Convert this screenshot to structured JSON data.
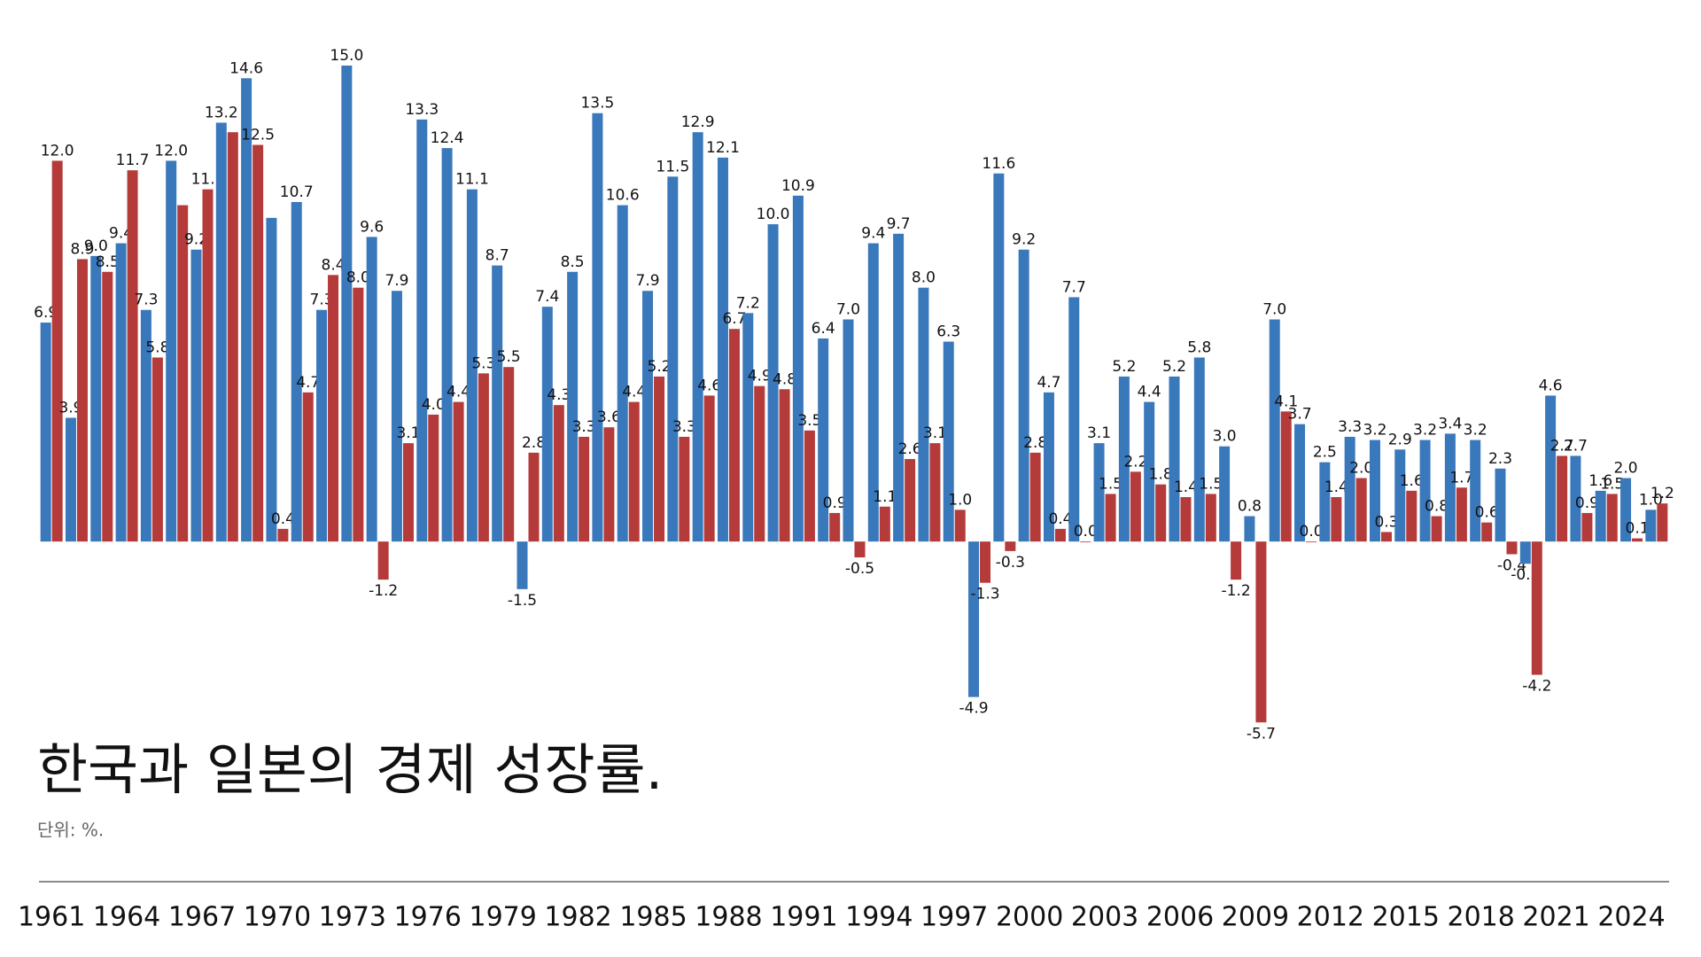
{
  "chart_data": {
    "type": "bar",
    "title": "한국과 일본의 경제 성장률.",
    "subtitle": "단위: %.",
    "categories": [
      "1961",
      null,
      null,
      "1964",
      null,
      null,
      "1967",
      null,
      null,
      "1970",
      null,
      null,
      "1973",
      null,
      null,
      "1976",
      null,
      null,
      "1979",
      null,
      null,
      "1982",
      null,
      null,
      "1985",
      null,
      null,
      "1988",
      null,
      null,
      "1991",
      null,
      null,
      "1994",
      null,
      null,
      "1997",
      null,
      null,
      "2000",
      null,
      null,
      "2003",
      null,
      null,
      "2006",
      null,
      null,
      "2009",
      null,
      null,
      "2012",
      null,
      null,
      "2015",
      null,
      null,
      "2018",
      null,
      null,
      "2021",
      null,
      null,
      "2024",
      null
    ],
    "series": [
      {
        "color": "#3a78bc",
        "values": [
          6.9,
          3.9,
          9.0,
          9.4,
          7.3,
          12.0,
          9.2,
          13.2,
          14.6,
          10.2,
          10.7,
          7.3,
          15.0,
          9.6,
          7.9,
          13.3,
          12.4,
          11.1,
          8.7,
          -1.5,
          7.4,
          8.5,
          13.5,
          10.6,
          7.9,
          11.5,
          12.9,
          12.1,
          7.2,
          10.0,
          10.9,
          6.4,
          7.0,
          9.4,
          9.7,
          8.0,
          6.3,
          -4.9,
          11.6,
          9.2,
          4.7,
          7.7,
          3.1,
          5.2,
          4.4,
          5.2,
          5.8,
          3.0,
          0.8,
          7.0,
          3.7,
          2.5,
          3.3,
          3.2,
          2.9,
          3.2,
          3.4,
          3.2,
          2.3,
          -0.7,
          4.6,
          2.7,
          1.6,
          2.0,
          1.0
        ],
        "value_labels": [
          "6.9",
          "3.9",
          "9.0",
          "9.4",
          "7.3",
          "12.0",
          "9.2",
          "13.2",
          "14.6",
          null,
          "10.7",
          "7.3",
          "15.0",
          "9.6",
          "7.9",
          "13.3",
          "12.4",
          "11.1",
          "8.7",
          "-1.5",
          "7.4",
          "8.5",
          "13.5",
          "10.6",
          "7.9",
          "11.5",
          "12.9",
          "12.1",
          "7.2",
          "10.0",
          "10.9",
          "6.4",
          "7.0",
          "9.4",
          "9.7",
          "8.0",
          "6.3",
          "-4.9",
          "11.6",
          "9.2",
          "4.7",
          "7.7",
          "3.1",
          "5.2",
          "4.4",
          "5.2",
          "5.8",
          "3.0",
          "0.8",
          "7.0",
          "3.7",
          "2.5",
          "3.3",
          "3.2",
          "2.9",
          "3.2",
          "3.4",
          "3.2",
          "2.3",
          "-0.7",
          "4.6",
          "2.7",
          "1.6",
          "2.0",
          "1.0"
        ]
      },
      {
        "color": "#b53a3a",
        "values": [
          12.0,
          8.9,
          8.5,
          11.7,
          5.8,
          10.6,
          11.1,
          12.9,
          12.5,
          0.4,
          4.7,
          8.4,
          8.0,
          -1.2,
          3.1,
          4.0,
          4.4,
          5.3,
          5.5,
          2.8,
          4.3,
          3.3,
          3.6,
          4.4,
          5.2,
          3.3,
          4.6,
          6.7,
          4.9,
          4.8,
          3.5,
          0.9,
          -0.5,
          1.1,
          2.6,
          3.1,
          1.0,
          -1.3,
          -0.3,
          2.8,
          0.4,
          0.0,
          1.5,
          2.2,
          1.8,
          1.4,
          1.5,
          -1.2,
          -5.7,
          4.1,
          0.0,
          1.4,
          2.0,
          0.3,
          1.6,
          0.8,
          1.7,
          0.6,
          -0.4,
          -4.2,
          2.7,
          0.9,
          1.5,
          0.1,
          1.2
        ],
        "value_labels": [
          "12.0",
          "8.9",
          "8.5",
          "11.7",
          "5.8",
          null,
          "11.1",
          null,
          "12.5",
          "0.4",
          "4.7",
          "8.4",
          "8.0",
          "-1.2",
          "3.1",
          "4.0",
          "4.4",
          "5.3",
          "5.5",
          "2.8",
          "4.3",
          "3.3",
          "3.6",
          "4.4",
          "5.2",
          "3.3",
          "4.6",
          "6.7",
          "4.9",
          "4.8",
          "3.5",
          "0.9",
          "-0.5",
          "1.1",
          "2.6",
          "3.1",
          "1.0",
          "-1.3",
          "-0.3",
          "2.8",
          "0.4",
          "0.0",
          "1.5",
          "2.2",
          "1.8",
          "1.4",
          "1.5",
          "-1.2",
          "-5.7",
          "4.1",
          "0.0",
          "1.4",
          "2.0",
          "0.3",
          "1.6",
          "0.8",
          "1.7",
          "0.6",
          "-0.4",
          "-4.2",
          "2.7",
          "0.9",
          "1.5",
          "0.1",
          "1.2"
        ]
      }
    ],
    "ylim": [
      -6,
      15
    ]
  }
}
